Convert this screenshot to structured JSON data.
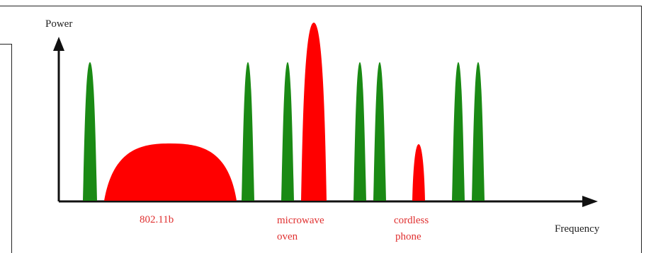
{
  "axes": {
    "y_label": "Power",
    "x_label": "Frequency"
  },
  "labels": {
    "wifi_802_11b": "802.11b",
    "microwave_line1": "microwave",
    "microwave_line2": "oven",
    "cordless_line1": "cordless",
    "cordless_line2": "phone"
  },
  "colors": {
    "narrowband": "#1a8a14",
    "interference": "#ff0000",
    "axis": "#111111",
    "label_red": "#e03030",
    "label_black": "#222222"
  }
}
